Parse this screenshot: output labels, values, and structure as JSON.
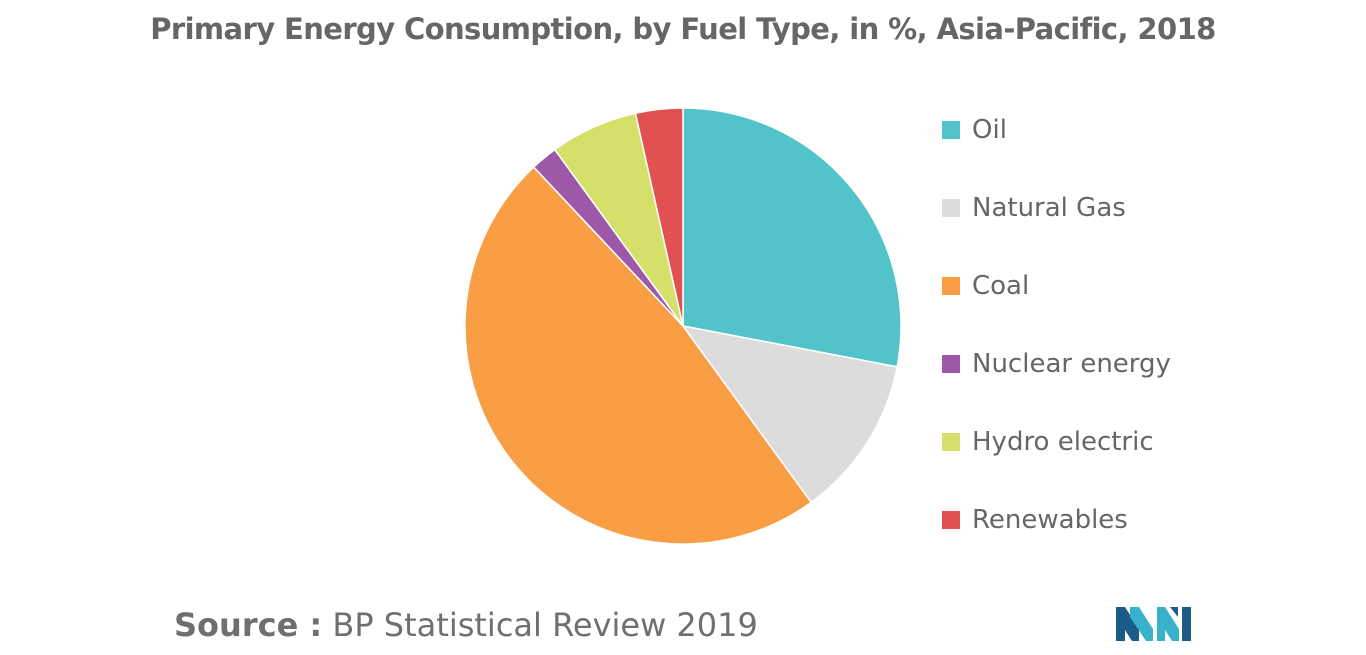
{
  "chart_data": {
    "type": "pie",
    "title": "Primary Energy Consumption, by Fuel Type, in %, Asia-Pacific, 2018",
    "slices": [
      {
        "label": "Oil",
        "value": 28.0,
        "color": "#52c4c9"
      },
      {
        "label": "Natural Gas",
        "value": 12.0,
        "color": "#dcdcdc"
      },
      {
        "label": "Coal",
        "value": 48.0,
        "color": "#fa9e45"
      },
      {
        "label": "Nuclear energy",
        "value": 2.0,
        "color": "#9d59a8"
      },
      {
        "label": "Hydro electric",
        "value": 6.5,
        "color": "#d5e06a"
      },
      {
        "label": "Renewables",
        "value": 3.5,
        "color": "#e15151"
      }
    ],
    "start_angle_deg": 0,
    "direction": "clockwise",
    "legend_position": "right"
  },
  "source": {
    "label": "Source :",
    "text": "BP Statistical Review 2019"
  },
  "logo": {
    "icon": "mordor-logo-icon",
    "colors": [
      "#1c5a88",
      "#39b1c9"
    ]
  }
}
